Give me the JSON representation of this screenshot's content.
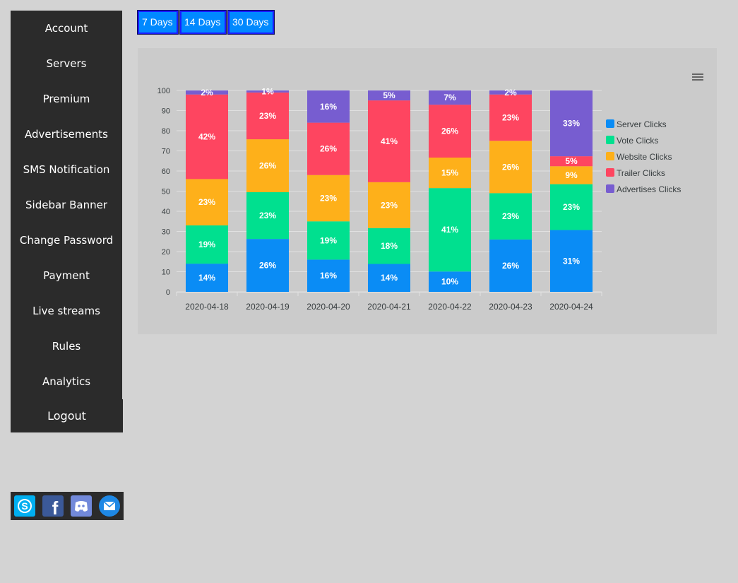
{
  "sidebar": {
    "items": [
      {
        "label": "Account"
      },
      {
        "label": "Servers"
      },
      {
        "label": "Premium"
      },
      {
        "label": "Advertisements"
      },
      {
        "label": "SMS Notification"
      },
      {
        "label": "Sidebar Banner"
      },
      {
        "label": "Change Password"
      },
      {
        "label": "Payment"
      },
      {
        "label": "Live streams"
      },
      {
        "label": "Rules"
      },
      {
        "label": "Analytics"
      }
    ],
    "logout_label": "Logout"
  },
  "social": [
    {
      "icon": "skype-icon",
      "color": "#00aff0"
    },
    {
      "icon": "facebook-icon",
      "color": "#3b5998"
    },
    {
      "icon": "discord-icon",
      "color": "#7289da"
    },
    {
      "icon": "email-icon",
      "color": "#1e88e5"
    }
  ],
  "range_buttons": [
    {
      "label": "7 Days"
    },
    {
      "label": "14 Days"
    },
    {
      "label": "30 Days"
    }
  ],
  "chart_data": {
    "type": "bar",
    "stacked": "percent",
    "categories": [
      "2020-04-18",
      "2020-04-19",
      "2020-04-20",
      "2020-04-21",
      "2020-04-22",
      "2020-04-23",
      "2020-04-24"
    ],
    "ylim": [
      0,
      100
    ],
    "yticks": [
      0,
      10,
      20,
      30,
      40,
      50,
      60,
      70,
      80,
      90,
      100
    ],
    "legend_position": "right",
    "series": [
      {
        "name": "Server Clicks",
        "color": "#0a8cf5",
        "values": [
          14,
          26,
          16,
          14,
          10,
          26,
          31
        ]
      },
      {
        "name": "Vote Clicks",
        "color": "#00e08f",
        "values": [
          19,
          23,
          19,
          18,
          41,
          23,
          23
        ]
      },
      {
        "name": "Website Clicks",
        "color": "#feb01a",
        "values": [
          23,
          26,
          23,
          23,
          15,
          26,
          9
        ]
      },
      {
        "name": "Trailer Clicks",
        "color": "#fe4560",
        "values": [
          42,
          23,
          26,
          41,
          26,
          23,
          5
        ]
      },
      {
        "name": "Advertises Clicks",
        "color": "#775dd0",
        "values": [
          2,
          1,
          16,
          5,
          7,
          2,
          33
        ]
      }
    ]
  }
}
